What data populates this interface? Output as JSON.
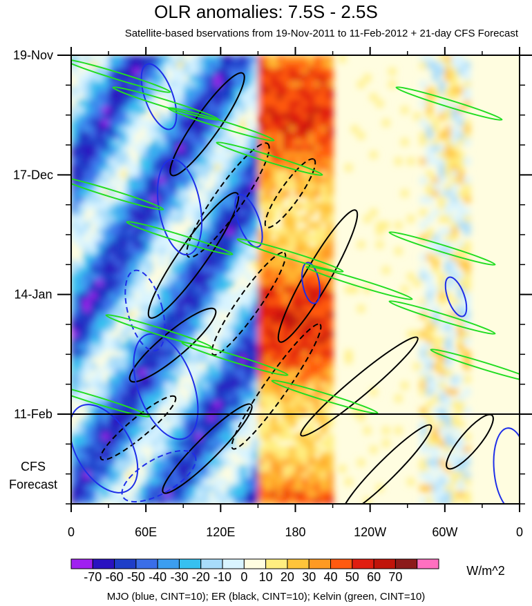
{
  "chart_data": {
    "type": "heatmap",
    "title": "OLR anomalies: 7.5S - 2.5S",
    "subtitle": "Satellite-based bservations from 19-Nov-2011 to 11-Feb-2012 + 21-day CFS Forecast",
    "x_ticks": [
      "0",
      "60E",
      "120E",
      "180",
      "120W",
      "60W",
      "0"
    ],
    "x_tick_lon": [
      0,
      60,
      120,
      180,
      240,
      300,
      360
    ],
    "y_ticks": [
      "19-Nov",
      "17-Dec",
      "14-Jan",
      "11-Feb"
    ],
    "y_tick_days": [
      0,
      28,
      56,
      84
    ],
    "forecast_label": [
      "CFS",
      "Forecast"
    ],
    "forecast_days": 21,
    "total_days": 105,
    "colorbar": {
      "labels": [
        "-70",
        "-60",
        "-50",
        "-40",
        "-30",
        "-20",
        "-10",
        "0",
        "10",
        "20",
        "30",
        "40",
        "50",
        "60",
        "70"
      ],
      "colors": [
        "#a020f0",
        "#2a12c0",
        "#1e3ec8",
        "#3a6ee8",
        "#3c9ef0",
        "#36c0f0",
        "#a8dcfa",
        "#d9f4ff",
        "#fffde0",
        "#ffee80",
        "#ffc43a",
        "#ff9a22",
        "#ff5a10",
        "#e01e10",
        "#c0140a",
        "#8c1a1a",
        "#ff70c0"
      ],
      "units": "W/m^2"
    },
    "footer": "MJO (blue, CINT=10); ER (black, CINT=10); Kelvin (green, CINT=10)",
    "contour_colors": {
      "mjo": "#1e2ee8",
      "er": "#000000",
      "kelvin": "#22dd22"
    }
  }
}
